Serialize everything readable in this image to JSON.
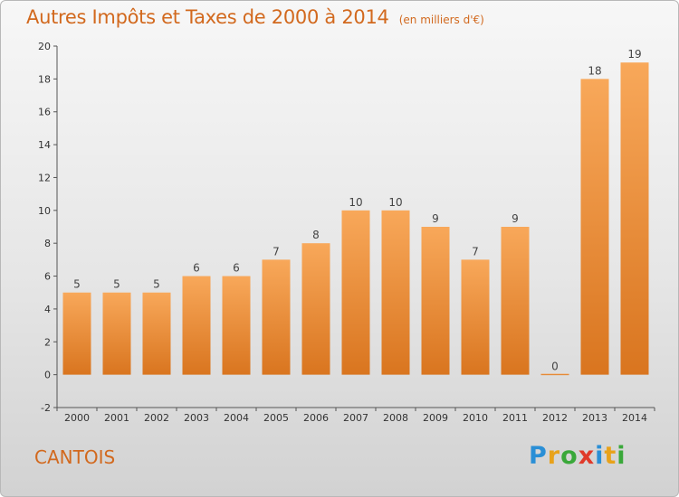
{
  "chart_data": {
    "type": "bar",
    "title": "Autres Impôts et Taxes de 2000 à 2014",
    "subtitle": "(en milliers d'€)",
    "categories": [
      "2000",
      "2001",
      "2002",
      "2003",
      "2004",
      "2005",
      "2006",
      "2007",
      "2008",
      "2009",
      "2010",
      "2011",
      "2012",
      "2013",
      "2014"
    ],
    "values": [
      5,
      5,
      5,
      6,
      6,
      7,
      8,
      10,
      10,
      9,
      7,
      9,
      0,
      18,
      19
    ],
    "ylim": [
      -2,
      20
    ],
    "yticks": [
      -2,
      0,
      2,
      4,
      6,
      8,
      10,
      12,
      14,
      16,
      18,
      20
    ],
    "grid": false,
    "bar_color": "#f0913a"
  },
  "footer": {
    "commune": "CANTOIS",
    "brand_letters": [
      {
        "ch": "P",
        "color": "#2a8fd6"
      },
      {
        "ch": "r",
        "color": "#e8a21a"
      },
      {
        "ch": "o",
        "color": "#3aa83a"
      },
      {
        "ch": "x",
        "color": "#e03a2a"
      },
      {
        "ch": "i",
        "color": "#2a8fd6"
      },
      {
        "ch": "t",
        "color": "#e8a21a"
      },
      {
        "ch": "i",
        "color": "#3aa83a"
      }
    ]
  }
}
